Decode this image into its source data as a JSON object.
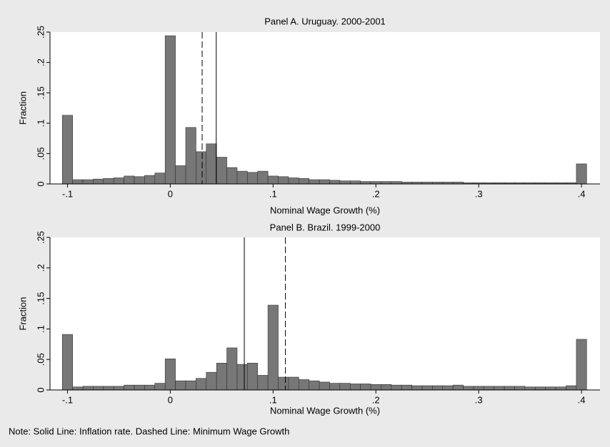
{
  "chart_data": [
    {
      "type": "histogram",
      "title": "Panel A. Uruguay. 2000-2001",
      "x_label": "Nominal Wage Growth (%)",
      "y_label": "Fraction",
      "color": "#777777",
      "bins": [
        -0.105,
        -0.095,
        -0.085,
        -0.075,
        -0.065,
        -0.055,
        -0.045,
        -0.035,
        -0.025,
        -0.015,
        -0.005,
        0.005,
        0.015,
        0.025,
        0.035,
        0.045,
        0.055,
        0.065,
        0.075,
        0.085,
        0.095,
        0.105,
        0.115,
        0.125,
        0.135,
        0.145,
        0.155,
        0.165,
        0.175,
        0.185,
        0.195,
        0.205,
        0.215,
        0.225,
        0.235,
        0.245,
        0.255,
        0.265,
        0.275,
        0.285,
        0.295,
        0.305,
        0.315,
        0.325,
        0.335,
        0.345,
        0.355,
        0.365,
        0.375,
        0.385,
        0.395,
        0.405
      ],
      "values": [
        0.113,
        0.007,
        0.007,
        0.008,
        0.009,
        0.01,
        0.013,
        0.012,
        0.014,
        0.018,
        0.244,
        0.03,
        0.093,
        0.053,
        0.066,
        0.044,
        0.027,
        0.021,
        0.019,
        0.021,
        0.013,
        0.012,
        0.01,
        0.009,
        0.007,
        0.007,
        0.006,
        0.005,
        0.005,
        0.004,
        0.004,
        0.004,
        0.004,
        0.003,
        0.003,
        0.003,
        0.003,
        0.003,
        0.003,
        0.002,
        0.002,
        0.002,
        0.002,
        0.002,
        0.002,
        0.002,
        0.002,
        0.002,
        0.002,
        0.002,
        0.033
      ],
      "vlines": [
        {
          "value": 0.031,
          "style": "dashed"
        },
        {
          "value": 0.0447,
          "style": "solid"
        }
      ],
      "xlim": [
        -0.117,
        0.418
      ],
      "ylim": [
        0,
        0.25
      ],
      "xticks": [
        {
          "value": -0.1,
          "label": "-.1"
        },
        0,
        {
          "value": 0.1,
          "label": ".1"
        },
        {
          "value": 0.2,
          "label": ".2"
        },
        {
          "value": 0.3,
          "label": ".3"
        },
        {
          "value": 0.4,
          "label": ".4"
        }
      ],
      "yticks": [
        0,
        {
          "value": 0.05,
          "label": ".05"
        },
        {
          "value": 0.1,
          "label": ".1"
        },
        {
          "value": 0.15,
          "label": ".15"
        },
        {
          "value": 0.2,
          "label": ".2"
        },
        {
          "value": 0.25,
          "label": ".25"
        }
      ]
    },
    {
      "type": "histogram",
      "title": "Panel B. Brazil. 1999-2000",
      "x_label": "Nominal Wage Growth (%)",
      "y_label": "Fraction",
      "color": "#777777",
      "bins": [
        -0.105,
        -0.095,
        -0.085,
        -0.075,
        -0.065,
        -0.055,
        -0.045,
        -0.035,
        -0.025,
        -0.015,
        -0.005,
        0.005,
        0.015,
        0.025,
        0.035,
        0.045,
        0.055,
        0.065,
        0.075,
        0.085,
        0.095,
        0.105,
        0.115,
        0.125,
        0.135,
        0.145,
        0.155,
        0.165,
        0.175,
        0.185,
        0.195,
        0.205,
        0.215,
        0.225,
        0.235,
        0.245,
        0.255,
        0.265,
        0.275,
        0.285,
        0.295,
        0.305,
        0.315,
        0.325,
        0.335,
        0.345,
        0.355,
        0.365,
        0.375,
        0.385,
        0.395,
        0.405
      ],
      "values": [
        0.091,
        0.005,
        0.006,
        0.006,
        0.006,
        0.006,
        0.008,
        0.008,
        0.008,
        0.011,
        0.051,
        0.015,
        0.015,
        0.019,
        0.029,
        0.044,
        0.069,
        0.042,
        0.044,
        0.024,
        0.139,
        0.021,
        0.021,
        0.017,
        0.015,
        0.013,
        0.011,
        0.011,
        0.01,
        0.01,
        0.009,
        0.009,
        0.008,
        0.008,
        0.007,
        0.007,
        0.007,
        0.007,
        0.008,
        0.006,
        0.006,
        0.006,
        0.006,
        0.006,
        0.006,
        0.005,
        0.005,
        0.005,
        0.005,
        0.007,
        0.083
      ],
      "vlines": [
        {
          "value": 0.072,
          "style": "solid"
        },
        {
          "value": 0.112,
          "style": "dashed"
        }
      ],
      "xlim": [
        -0.117,
        0.418
      ],
      "ylim": [
        0,
        0.25
      ],
      "xticks": [
        {
          "value": -0.1,
          "label": "-.1"
        },
        0,
        {
          "value": 0.1,
          "label": ".1"
        },
        {
          "value": 0.2,
          "label": ".2"
        },
        {
          "value": 0.3,
          "label": ".3"
        },
        {
          "value": 0.4,
          "label": ".4"
        }
      ],
      "yticks": [
        0,
        {
          "value": 0.05,
          "label": ".05"
        },
        {
          "value": 0.1,
          "label": ".1"
        },
        {
          "value": 0.15,
          "label": ".15"
        },
        {
          "value": 0.2,
          "label": ".2"
        },
        {
          "value": 0.25,
          "label": ".25"
        }
      ]
    }
  ],
  "note": "Note: Solid Line: Inflation rate. Dashed Line: Minimum Wage Growth"
}
